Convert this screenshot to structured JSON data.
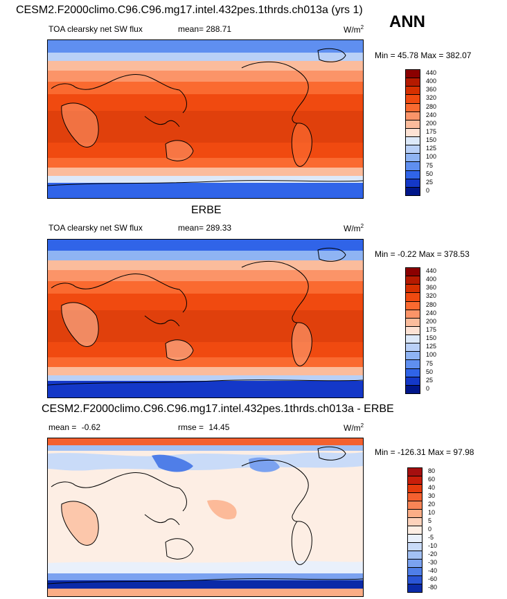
{
  "season": "ANN",
  "panels": [
    {
      "title": "CESM2.F2000climo.C96.C96.mg17.intel.432pes.1thrds.ch013a (yrs 1)",
      "variable": "TOA clearsky net SW flux",
      "mean_label": "mean=",
      "mean": "288.71",
      "units": "W/m",
      "units_sup": "2",
      "minmax_label": "Min =  45.78 Max = 382.07",
      "levels": [
        "440",
        "400",
        "360",
        "320",
        "280",
        "240",
        "200",
        "175",
        "150",
        "125",
        "100",
        "75",
        "50",
        "25",
        "0"
      ],
      "colors": [
        "#8b0000",
        "#b51a00",
        "#d63000",
        "#f04a10",
        "#fa6a30",
        "#fb9468",
        "#fbbc9c",
        "#fde2d4",
        "#dde9f9",
        "#b9d0f7",
        "#8fb4f3",
        "#5f8ff0",
        "#3064e8",
        "#1438c8",
        "#00168a"
      ]
    },
    {
      "title": "ERBE",
      "variable": "TOA clearsky net SW flux",
      "mean_label": "mean=",
      "mean": "289.33",
      "units": "W/m",
      "units_sup": "2",
      "minmax_label": "Min =  -0.22 Max = 378.53",
      "levels": [
        "440",
        "400",
        "360",
        "320",
        "280",
        "240",
        "200",
        "175",
        "150",
        "125",
        "100",
        "75",
        "50",
        "25",
        "0"
      ],
      "colors": [
        "#8b0000",
        "#b51a00",
        "#d63000",
        "#f04a10",
        "#fa6a30",
        "#fb9468",
        "#fbbc9c",
        "#fde2d4",
        "#dde9f9",
        "#b9d0f7",
        "#8fb4f3",
        "#5f8ff0",
        "#3064e8",
        "#1438c8",
        "#00168a"
      ]
    },
    {
      "title": "CESM2.F2000climo.C96.C96.mg17.intel.432pes.1thrds.ch013a - ERBE",
      "mean_label": "mean =",
      "mean": "-0.62",
      "rmse_label": "rmse =",
      "rmse": "14.45",
      "units": "W/m",
      "units_sup": "2",
      "minmax_label": "Min = -126.31 Max =  97.98",
      "levels": [
        "80",
        "60",
        "40",
        "30",
        "20",
        "10",
        "5",
        "0",
        "-5",
        "-10",
        "-20",
        "-30",
        "-40",
        "-60",
        "-80"
      ],
      "colors": [
        "#a50f0f",
        "#c81e0a",
        "#e53b0d",
        "#f4602f",
        "#f98556",
        "#fbad86",
        "#fdd2bb",
        "#fdeee4",
        "#e9f0fb",
        "#c9dbf8",
        "#a3c1f4",
        "#7ba2f0",
        "#4f7ee8",
        "#2a55d6",
        "#0a2aa8"
      ]
    }
  ]
}
